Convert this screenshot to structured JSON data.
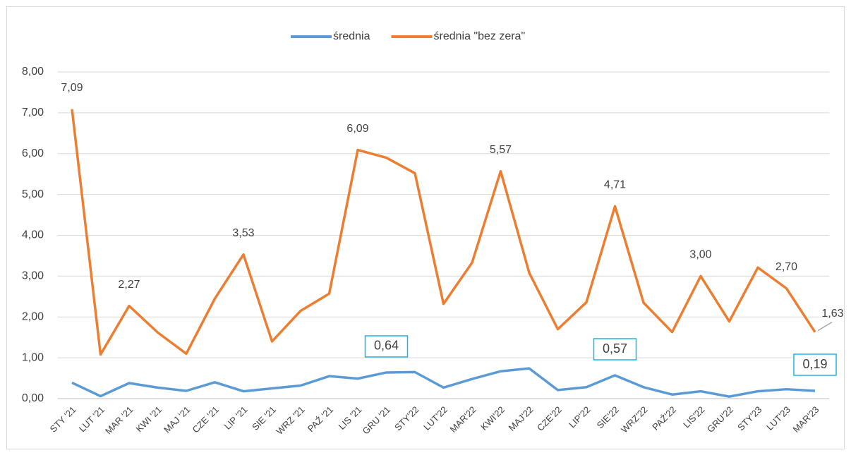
{
  "chart_data": {
    "type": "line",
    "categories": [
      "STY '21",
      "LUT '21",
      "MAR '21",
      "KWI '21",
      "MAJ '21",
      "CZE '21",
      "LIP '21",
      "SIE '21",
      "WRZ '21",
      "PAŹ '21",
      "LIS '21",
      "GRU '21",
      "STY'22",
      "LUT'22",
      "MAR'22",
      "KWI'22",
      "MAJ'22",
      "CZE'22",
      "LIP'22",
      "SIE'22",
      "WRZ'22",
      "PAŹ'22",
      "LIS'22",
      "GRU'22",
      "STY'23",
      "LUT'23",
      "MAR'23"
    ],
    "series": [
      {
        "name": "średnia",
        "color": "#5b9bd5",
        "values": [
          0.39,
          0.06,
          0.38,
          0.27,
          0.19,
          0.4,
          0.18,
          0.25,
          0.32,
          0.55,
          0.49,
          0.64,
          0.65,
          0.27,
          0.48,
          0.67,
          0.74,
          0.21,
          0.28,
          0.57,
          0.28,
          0.1,
          0.18,
          0.05,
          0.18,
          0.23,
          0.19
        ],
        "value_labels": [
          null,
          null,
          null,
          null,
          null,
          null,
          null,
          null,
          null,
          null,
          null,
          "0,64",
          null,
          null,
          null,
          null,
          null,
          null,
          null,
          "0,57",
          null,
          null,
          null,
          null,
          null,
          null,
          "0,19"
        ]
      },
      {
        "name": "średnia \"bez zera\"",
        "color": "#ed7d31",
        "values": [
          7.09,
          1.08,
          2.27,
          1.62,
          1.1,
          2.45,
          3.53,
          1.4,
          2.15,
          2.57,
          6.09,
          5.9,
          5.52,
          2.32,
          3.33,
          5.57,
          3.08,
          1.7,
          2.36,
          4.71,
          2.35,
          1.63,
          3.0,
          1.89,
          3.21,
          2.7,
          1.63
        ],
        "value_labels": [
          "7,09",
          null,
          "2,27",
          null,
          null,
          null,
          "3,53",
          null,
          null,
          null,
          "6,09",
          null,
          null,
          null,
          null,
          "5,57",
          null,
          null,
          null,
          "4,71",
          null,
          null,
          "3,00",
          null,
          null,
          "2,70",
          "1,63"
        ]
      }
    ],
    "ylim": [
      0,
      8
    ],
    "yticks": [
      {
        "value": 0,
        "label": "0,00"
      },
      {
        "value": 1,
        "label": "1,00"
      },
      {
        "value": 2,
        "label": "2,00"
      },
      {
        "value": 3,
        "label": "3,00"
      },
      {
        "value": 4,
        "label": "4,00"
      },
      {
        "value": 5,
        "label": "5,00"
      },
      {
        "value": 6,
        "label": "6,00"
      },
      {
        "value": 7,
        "label": "7,00"
      },
      {
        "value": 8,
        "label": "8,00"
      }
    ],
    "grid": true,
    "legend": "top"
  }
}
